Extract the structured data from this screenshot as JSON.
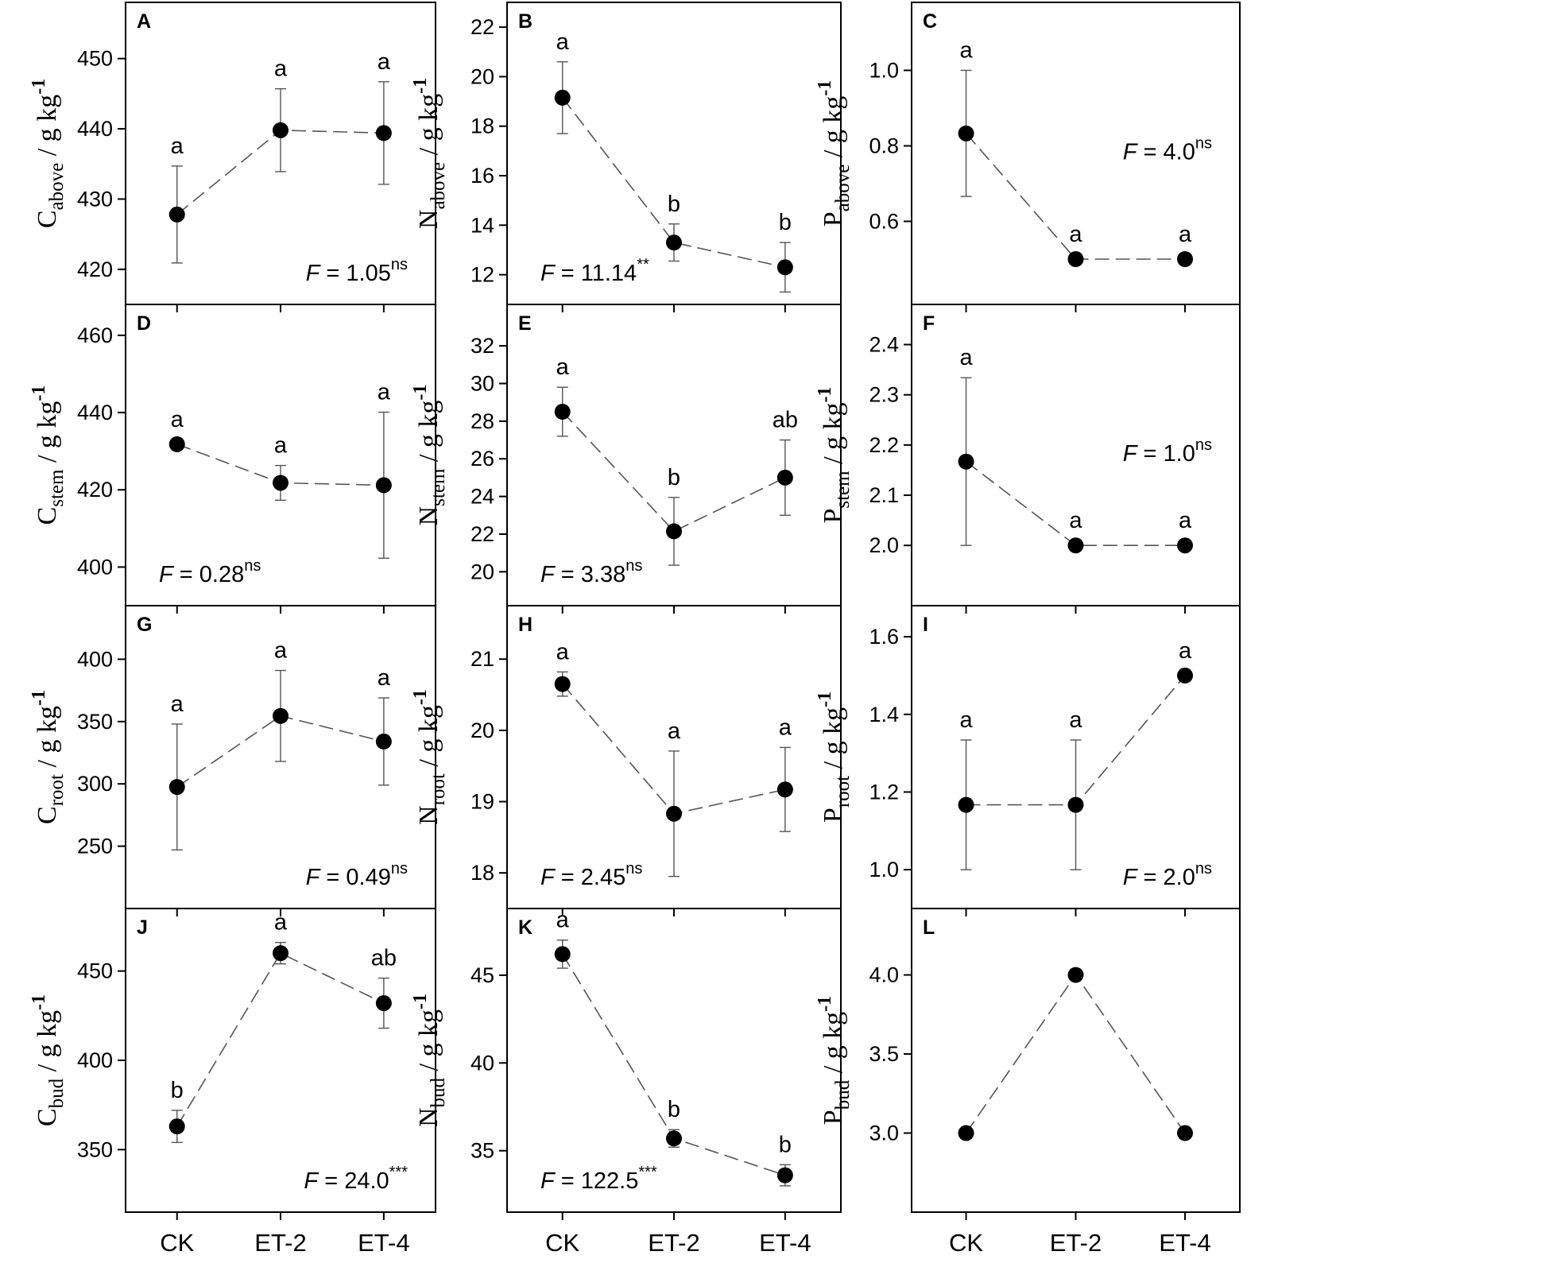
{
  "x_tick_labels": [
    "CK",
    "ET-2",
    "ET-4"
  ],
  "chart_data": [
    {
      "id": "A",
      "type": "line",
      "categories": [
        "CK",
        "ET-2",
        "ET-4"
      ],
      "ylabel": {
        "main": "C",
        "sub": "above",
        "unit": " / g kg",
        "sup": "-1"
      },
      "ylim": [
        415,
        458
      ],
      "yticks": [
        420,
        430,
        440,
        450
      ],
      "values": [
        427.8,
        439.8,
        439.4
      ],
      "errors": [
        6.9,
        5.9,
        7.3
      ],
      "letters": [
        "a",
        "a",
        "a"
      ],
      "f_stat": {
        "prefix": "F",
        "value": " = 1.05",
        "sig": "ns",
        "pos": "lower-right"
      }
    },
    {
      "id": "B",
      "type": "line",
      "categories": [
        "CK",
        "ET-2",
        "ET-4"
      ],
      "ylabel": {
        "main": "N",
        "sub": "above",
        "unit": " / g kg",
        "sup": "-1"
      },
      "ylim": [
        10.8,
        23
      ],
      "yticks": [
        12,
        14,
        16,
        18,
        20,
        22
      ],
      "values": [
        19.15,
        13.3,
        12.3
      ],
      "errors": [
        1.45,
        0.75,
        1.0
      ],
      "letters": [
        "a",
        "b",
        "b"
      ],
      "f_stat": {
        "prefix": "F",
        "value": " = 11.14",
        "sig": "**",
        "pos": "lower-left"
      }
    },
    {
      "id": "C",
      "type": "line",
      "categories": [
        "CK",
        "ET-2",
        "ET-4"
      ],
      "ylabel": {
        "main": "P",
        "sub": "above",
        "unit": " / g kg",
        "sup": "-1"
      },
      "ylim": [
        0.38,
        1.18
      ],
      "yticks": [
        0.6,
        0.8,
        1.0
      ],
      "values": [
        0.833,
        0.5,
        0.5
      ],
      "errors": [
        0.167,
        0,
        0
      ],
      "letters": [
        "a",
        "a",
        "a"
      ],
      "f_stat": {
        "prefix": "F",
        "value": " = 4.0",
        "sig": "ns",
        "pos": "mid-right"
      }
    },
    {
      "id": "D",
      "type": "line",
      "categories": [
        "CK",
        "ET-2",
        "ET-4"
      ],
      "ylabel": {
        "main": "C",
        "sub": "stem",
        "unit": " / g kg",
        "sup": "-1"
      },
      "ylim": [
        390,
        468
      ],
      "yticks": [
        400,
        420,
        440,
        460
      ],
      "values": [
        431.8,
        421.8,
        421.2
      ],
      "errors": [
        0,
        4.5,
        18.9
      ],
      "letters": [
        "a",
        "a",
        "a"
      ],
      "f_stat": {
        "prefix": "F",
        "value": " = 0.28",
        "sig": "ns",
        "pos": "lower-left"
      }
    },
    {
      "id": "E",
      "type": "line",
      "categories": [
        "CK",
        "ET-2",
        "ET-4"
      ],
      "ylabel": {
        "main": "N",
        "sub": "stem",
        "unit": " / g kg",
        "sup": "-1"
      },
      "ylim": [
        18.2,
        34.2
      ],
      "yticks": [
        20,
        22,
        24,
        26,
        28,
        30,
        32
      ],
      "values": [
        28.5,
        22.15,
        25.0
      ],
      "errors": [
        1.3,
        1.8,
        2.0
      ],
      "letters": [
        "a",
        "b",
        "ab"
      ],
      "f_stat": {
        "prefix": "F",
        "value": " = 3.38",
        "sig": "ns",
        "pos": "lower-left"
      }
    },
    {
      "id": "F",
      "type": "line",
      "categories": [
        "CK",
        "ET-2",
        "ET-4"
      ],
      "ylabel": {
        "main": "P",
        "sub": "stem",
        "unit": " / g kg",
        "sup": "-1"
      },
      "ylim": [
        1.88,
        2.48
      ],
      "yticks": [
        2.0,
        2.1,
        2.2,
        2.3,
        2.4
      ],
      "values": [
        2.167,
        2.0,
        2.0
      ],
      "errors": [
        0.167,
        0,
        0
      ],
      "letters": [
        "a",
        "a",
        "a"
      ],
      "f_stat": {
        "prefix": "F",
        "value": " = 1.0",
        "sig": "ns",
        "pos": "mid-right"
      }
    },
    {
      "id": "G",
      "type": "line",
      "categories": [
        "CK",
        "ET-2",
        "ET-4"
      ],
      "ylabel": {
        "main": "C",
        "sub": "root",
        "unit": " / g kg",
        "sup": "-1"
      },
      "ylim": [
        200,
        443
      ],
      "yticks": [
        250,
        300,
        350,
        400
      ],
      "values": [
        297.5,
        354.5,
        334.0
      ],
      "errors": [
        50.5,
        36.5,
        35.0
      ],
      "letters": [
        "a",
        "a",
        "a"
      ],
      "f_stat": {
        "prefix": "F",
        "value": " = 0.49",
        "sig": "ns",
        "pos": "lower-right"
      }
    },
    {
      "id": "H",
      "type": "line",
      "categories": [
        "CK",
        "ET-2",
        "ET-4"
      ],
      "ylabel": {
        "main": "N",
        "sub": "root",
        "unit": " / g kg",
        "sup": "-1"
      },
      "ylim": [
        17.5,
        21.75
      ],
      "yticks": [
        18,
        19,
        20,
        21
      ],
      "values": [
        20.65,
        18.83,
        19.17
      ],
      "errors": [
        0.17,
        0.88,
        0.59
      ],
      "letters": [
        "a",
        "a",
        "a"
      ],
      "f_stat": {
        "prefix": "F",
        "value": " = 2.45",
        "sig": "ns",
        "pos": "lower-left"
      }
    },
    {
      "id": "I",
      "type": "line",
      "categories": [
        "CK",
        "ET-2",
        "ET-4"
      ],
      "ylabel": {
        "main": "P",
        "sub": "root",
        "unit": " / g kg",
        "sup": "-1"
      },
      "ylim": [
        0.9,
        1.68
      ],
      "yticks": [
        1.0,
        1.2,
        1.4,
        1.6
      ],
      "values": [
        1.167,
        1.167,
        1.5
      ],
      "errors": [
        0.167,
        0.167,
        0
      ],
      "letters": [
        "a",
        "a",
        "a"
      ],
      "f_stat": {
        "prefix": "F",
        "value": " = 2.0",
        "sig": "ns",
        "pos": "lower-right"
      }
    },
    {
      "id": "J",
      "type": "line",
      "categories": [
        "CK",
        "ET-2",
        "ET-4"
      ],
      "ylabel": {
        "main": "C",
        "sub": "bud",
        "unit": " / g kg",
        "sup": "-1"
      },
      "ylim": [
        315,
        485
      ],
      "yticks": [
        350,
        400,
        450
      ],
      "values": [
        363.0,
        460.0,
        432.0
      ],
      "errors": [
        9.0,
        6.0,
        14.0
      ],
      "letters": [
        "b",
        "a",
        "ab"
      ],
      "f_stat": {
        "prefix": "F",
        "value": " = 24.0",
        "sig": "***",
        "pos": "lower-right"
      }
    },
    {
      "id": "K",
      "type": "line",
      "categories": [
        "CK",
        "ET-2",
        "ET-4"
      ],
      "ylabel": {
        "main": "N",
        "sub": "bud",
        "unit": " / g kg",
        "sup": "-1"
      },
      "ylim": [
        31.5,
        48.8
      ],
      "yticks": [
        35,
        40,
        45
      ],
      "values": [
        46.2,
        35.7,
        33.6
      ],
      "errors": [
        0.8,
        0.5,
        0.6
      ],
      "letters": [
        "a",
        "b",
        "b"
      ],
      "f_stat": {
        "prefix": "F",
        "value": " = 122.5",
        "sig": "***",
        "pos": "lower-left"
      }
    },
    {
      "id": "L",
      "type": "line",
      "categories": [
        "CK",
        "ET-2",
        "ET-4"
      ],
      "ylabel": {
        "main": "P",
        "sub": "bud",
        "unit": " / g kg",
        "sup": "-1"
      },
      "ylim": [
        2.5,
        4.42
      ],
      "yticks": [
        3.0,
        3.5,
        4.0
      ],
      "values": [
        3.0,
        4.0,
        3.0
      ],
      "errors": [
        0,
        0,
        0
      ],
      "letters": [
        "",
        "",
        ""
      ],
      "f_stat": null
    }
  ]
}
